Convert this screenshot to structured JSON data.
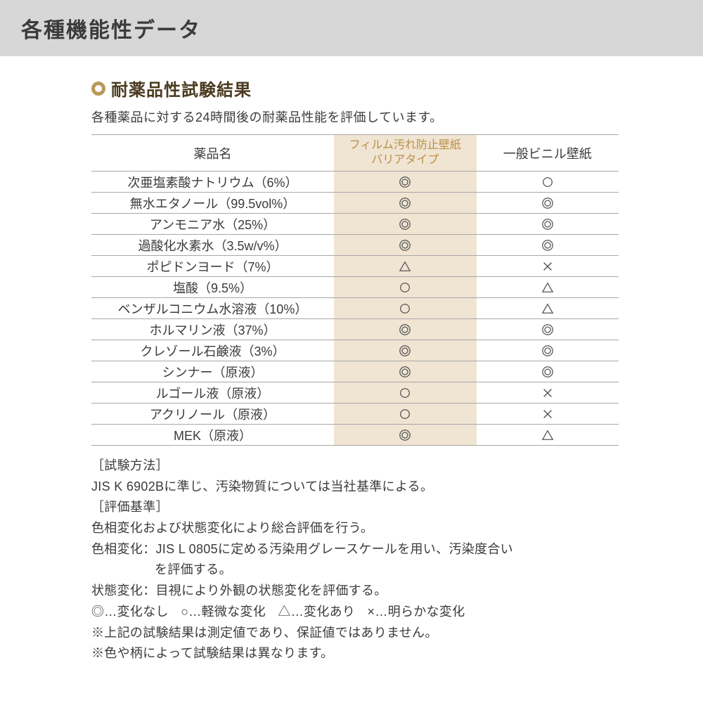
{
  "colors": {
    "header_bg": "#d7d7d7",
    "title_text": "#3b3b3b",
    "accent": "#b99a5b",
    "section_title": "#4a3a1f",
    "body_text": "#3b3b3b",
    "film_bg": "#f0e4d3",
    "film_header_text": "#b99146",
    "rule": "#a8a8a8",
    "symbol_stroke": "#555555"
  },
  "header": {
    "title": "各種機能性データ"
  },
  "section": {
    "title": "耐薬品性試験結果",
    "description": "各種薬品に対する24時間後の耐薬品性能を評価しています。"
  },
  "table": {
    "columns": {
      "name": "薬品名",
      "film_line1": "フィルム汚れ防止壁紙",
      "film_line2": "バリアタイプ",
      "general": "一般ビニル壁紙"
    },
    "rows": [
      {
        "name": "次亜塩素酸ナトリウム（6%）",
        "film": "double",
        "general": "single"
      },
      {
        "name": "無水エタノール（99.5vol%）",
        "film": "double",
        "general": "double"
      },
      {
        "name": "アンモニア水（25%）",
        "film": "double",
        "general": "double"
      },
      {
        "name": "過酸化水素水（3.5w/v%）",
        "film": "double",
        "general": "double"
      },
      {
        "name": "ポピドンヨード（7%）",
        "film": "triangle",
        "general": "cross"
      },
      {
        "name": "塩酸（9.5%）",
        "film": "single",
        "general": "triangle"
      },
      {
        "name": "ベンザルコニウム水溶液（10%）",
        "film": "single",
        "general": "triangle"
      },
      {
        "name": "ホルマリン液（37%）",
        "film": "double",
        "general": "double"
      },
      {
        "name": "クレゾール石鹸液（3%）",
        "film": "double",
        "general": "double"
      },
      {
        "name": "シンナー（原液）",
        "film": "double",
        "general": "double"
      },
      {
        "name": "ルゴール液（原液）",
        "film": "single",
        "general": "cross"
      },
      {
        "name": "アクリノール（原液）",
        "film": "single",
        "general": "cross"
      },
      {
        "name": "MEK（原液）",
        "film": "double",
        "general": "triangle"
      }
    ]
  },
  "notes": {
    "method_label": "［試験方法］",
    "method_text": "JIS K 6902Bに準じ、汚染物質については当社基準による。",
    "criteria_label": "［評価基準］",
    "criteria_text1": "色相変化および状態変化により総合評価を行う。",
    "criteria_text2a": "色相変化：JIS L 0805に定める汚染用グレースケールを用い、汚染度合い",
    "criteria_text2b": "を評価する。",
    "criteria_text3": "状態変化：目視により外観の状態変化を評価する。",
    "legend_double": "◎…変化なし",
    "legend_single": "○…軽微な変化",
    "legend_triangle": "△…変化あり",
    "legend_cross": "×…明らかな変化",
    "disclaimer1": "※上記の試験結果は測定値であり、保証値ではありません。",
    "disclaimer2": "※色や柄によって試験結果は異なります。"
  }
}
